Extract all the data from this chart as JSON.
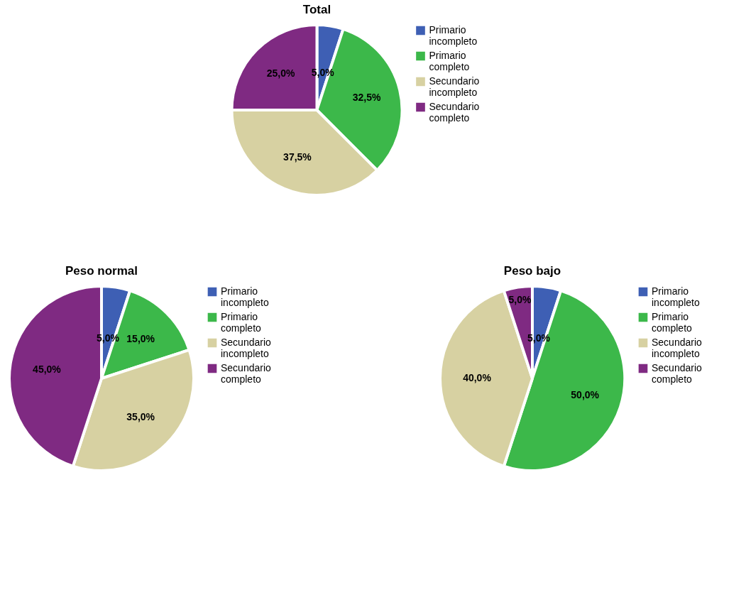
{
  "chart_data": [
    {
      "type": "pie",
      "title": "Total",
      "categories": [
        "Primario incompleto",
        "Primario completo",
        "Secundario incompleto",
        "Secundario completo"
      ],
      "values": [
        5.0,
        32.5,
        37.5,
        25.0
      ],
      "colors": [
        "#3e5fb4",
        "#3cb84a",
        "#d7d1a2",
        "#7f2a82"
      ],
      "value_labels": [
        "5,0%",
        "32,5%",
        "37,5%",
        "25,0%"
      ],
      "legend": "right"
    },
    {
      "type": "pie",
      "title": "Peso normal",
      "categories": [
        "Primario incompleto",
        "Primario completo",
        "Secundario incompleto",
        "Secundario completo"
      ],
      "values": [
        5.0,
        15.0,
        35.0,
        45.0
      ],
      "colors": [
        "#3e5fb4",
        "#3cb84a",
        "#d7d1a2",
        "#7f2a82"
      ],
      "value_labels": [
        "5,0%",
        "15,0%",
        "35,0%",
        "45,0%"
      ],
      "legend": "right"
    },
    {
      "type": "pie",
      "title": "Peso bajo",
      "categories": [
        "Primario incompleto",
        "Primario completo",
        "Secundario incompleto",
        "Secundario completo"
      ],
      "values": [
        5.0,
        50.0,
        40.0,
        5.0
      ],
      "colors": [
        "#3e5fb4",
        "#3cb84a",
        "#d7d1a2",
        "#7f2a82"
      ],
      "value_labels": [
        "5,0%",
        "50,0%",
        "40,0%",
        "5,0%"
      ],
      "legend": "right"
    }
  ]
}
